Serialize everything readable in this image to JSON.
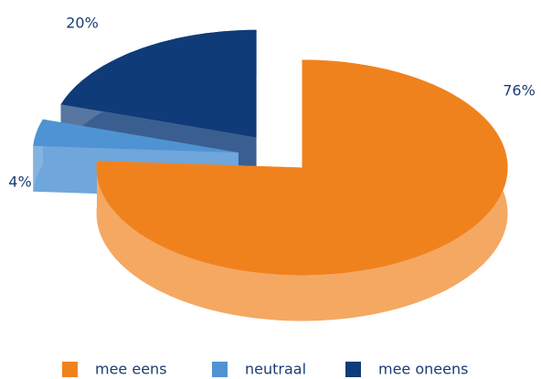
{
  "chart_data": {
    "type": "pie",
    "categories": [
      "mee eens",
      "neutraal",
      "mee oneens"
    ],
    "values": [
      76,
      4,
      20
    ],
    "value_labels": [
      "76%",
      "4%",
      "20%"
    ],
    "colors": [
      "#f0821e",
      "#4f93d3",
      "#0f3b78"
    ],
    "legend": "bottom"
  }
}
